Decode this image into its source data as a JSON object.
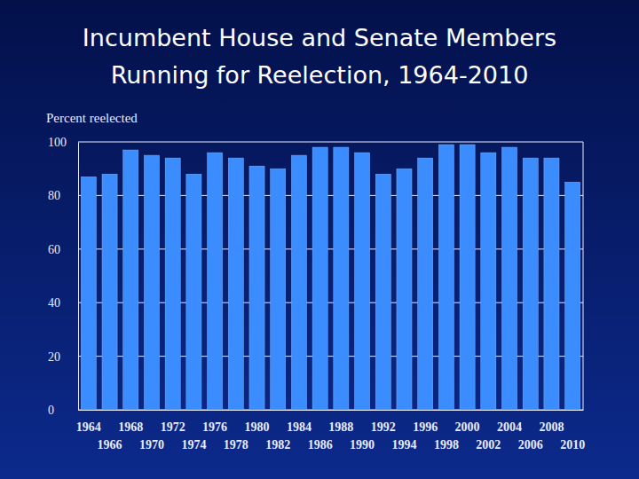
{
  "chart_data": {
    "type": "bar",
    "title": [
      "Incumbent House and Senate Members",
      "Running for Reelection, 1964-2010"
    ],
    "y_label": "Percent reelected",
    "categories": [
      "1964",
      "1966",
      "1968",
      "1970",
      "1972",
      "1974",
      "1976",
      "1978",
      "1980",
      "1982",
      "1984",
      "1986",
      "1988",
      "1990",
      "1992",
      "1994",
      "1996",
      "1998",
      "2000",
      "2002",
      "2004",
      "2006",
      "2008",
      "2010"
    ],
    "values": [
      87,
      88,
      97,
      95,
      94,
      88,
      96,
      94,
      91,
      90,
      95,
      98,
      98,
      96,
      88,
      90,
      94,
      99,
      99,
      96,
      98,
      94,
      94,
      85
    ],
    "color": "#3a8cff",
    "ylim": [
      0,
      100
    ],
    "yticks": [
      0,
      20,
      40,
      60,
      80,
      100
    ],
    "grid": true
  }
}
